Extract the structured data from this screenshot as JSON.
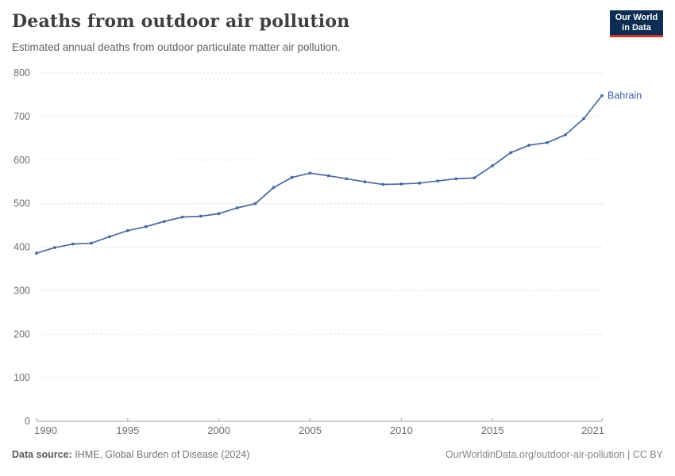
{
  "header": {
    "title": "Deaths from outdoor air pollution",
    "subtitle": "Estimated annual deaths from outdoor particulate matter air pollution.",
    "logo": {
      "line1": "Our World",
      "line2": "in Data"
    }
  },
  "footer": {
    "source_label": "Data source:",
    "source_value": " IHME, Global Burden of Disease (2024)",
    "link": "OurWorldinData.org/outdoor-air-pollution | CC BY"
  },
  "colors": {
    "line": "#4a69a2",
    "point": "#4a69a2",
    "entity_label": "#3d649d",
    "grid": "#dddddd",
    "axis": "#a5a5a5",
    "tick_text": "#6e6e6e",
    "logo_bg": "#0d2e52",
    "logo_red": "#d0342c"
  },
  "chart_data": {
    "type": "line",
    "title": "Deaths from outdoor air pollution",
    "subtitle": "Estimated annual deaths from outdoor particulate matter air pollution.",
    "xlabel": "",
    "ylabel": "",
    "xlim": [
      1990,
      2021
    ],
    "ylim": [
      0,
      800
    ],
    "x_ticks": [
      1990,
      1995,
      2000,
      2005,
      2010,
      2015,
      2021
    ],
    "y_ticks": [
      0,
      100,
      200,
      300,
      400,
      500,
      600,
      700,
      800
    ],
    "grid": "horizontal-dashed",
    "legend_position": "end-of-line-label",
    "series": [
      {
        "name": "Bahrain",
        "x": [
          1990,
          1991,
          1992,
          1993,
          1994,
          1995,
          1996,
          1997,
          1998,
          1999,
          2000,
          2001,
          2002,
          2003,
          2004,
          2005,
          2006,
          2007,
          2008,
          2009,
          2010,
          2011,
          2012,
          2013,
          2014,
          2015,
          2016,
          2017,
          2018,
          2019,
          2020,
          2021
        ],
        "values": [
          386,
          399,
          407,
          409,
          424,
          438,
          447,
          459,
          469,
          471,
          477,
          490,
          500,
          537,
          560,
          570,
          564,
          557,
          550,
          544,
          545,
          547,
          552,
          557,
          559,
          587,
          617,
          634,
          640,
          658,
          695,
          748
        ]
      }
    ]
  }
}
